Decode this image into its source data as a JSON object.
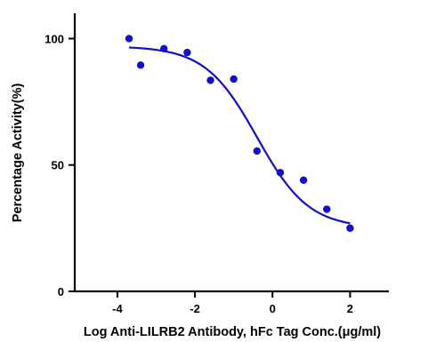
{
  "chart_data": {
    "type": "scatter",
    "title": "",
    "xlabel": "Log Anti-LILRB2 Antibody, hFc Tag Conc.(μg/ml)",
    "ylabel": "Percentage Activity(%)",
    "xlim": [
      -5.1,
      3.0
    ],
    "ylim": [
      0,
      110
    ],
    "xticks": [
      -4,
      -2,
      0,
      2
    ],
    "yticks": [
      0,
      50,
      100
    ],
    "grid": false,
    "legend": "none",
    "point_color": "#1010c8",
    "curve_color": "#1010c8",
    "points": [
      {
        "x": -3.7,
        "y": 100
      },
      {
        "x": -3.4,
        "y": 89.5
      },
      {
        "x": -2.8,
        "y": 96
      },
      {
        "x": -2.2,
        "y": 94.5
      },
      {
        "x": -1.6,
        "y": 83.5
      },
      {
        "x": -1.0,
        "y": 84
      },
      {
        "x": -0.4,
        "y": 55.5
      },
      {
        "x": 0.2,
        "y": 47
      },
      {
        "x": 0.8,
        "y": 44
      },
      {
        "x": 1.4,
        "y": 32.5
      },
      {
        "x": 2.0,
        "y": 25
      }
    ],
    "fit_curve": {
      "model": "sigmoidal dose-response",
      "x_range": [
        -3.7,
        2.0
      ],
      "top": 97,
      "bottom": 25,
      "log_ec50": -0.4,
      "hill_slope": 0.65
    }
  }
}
